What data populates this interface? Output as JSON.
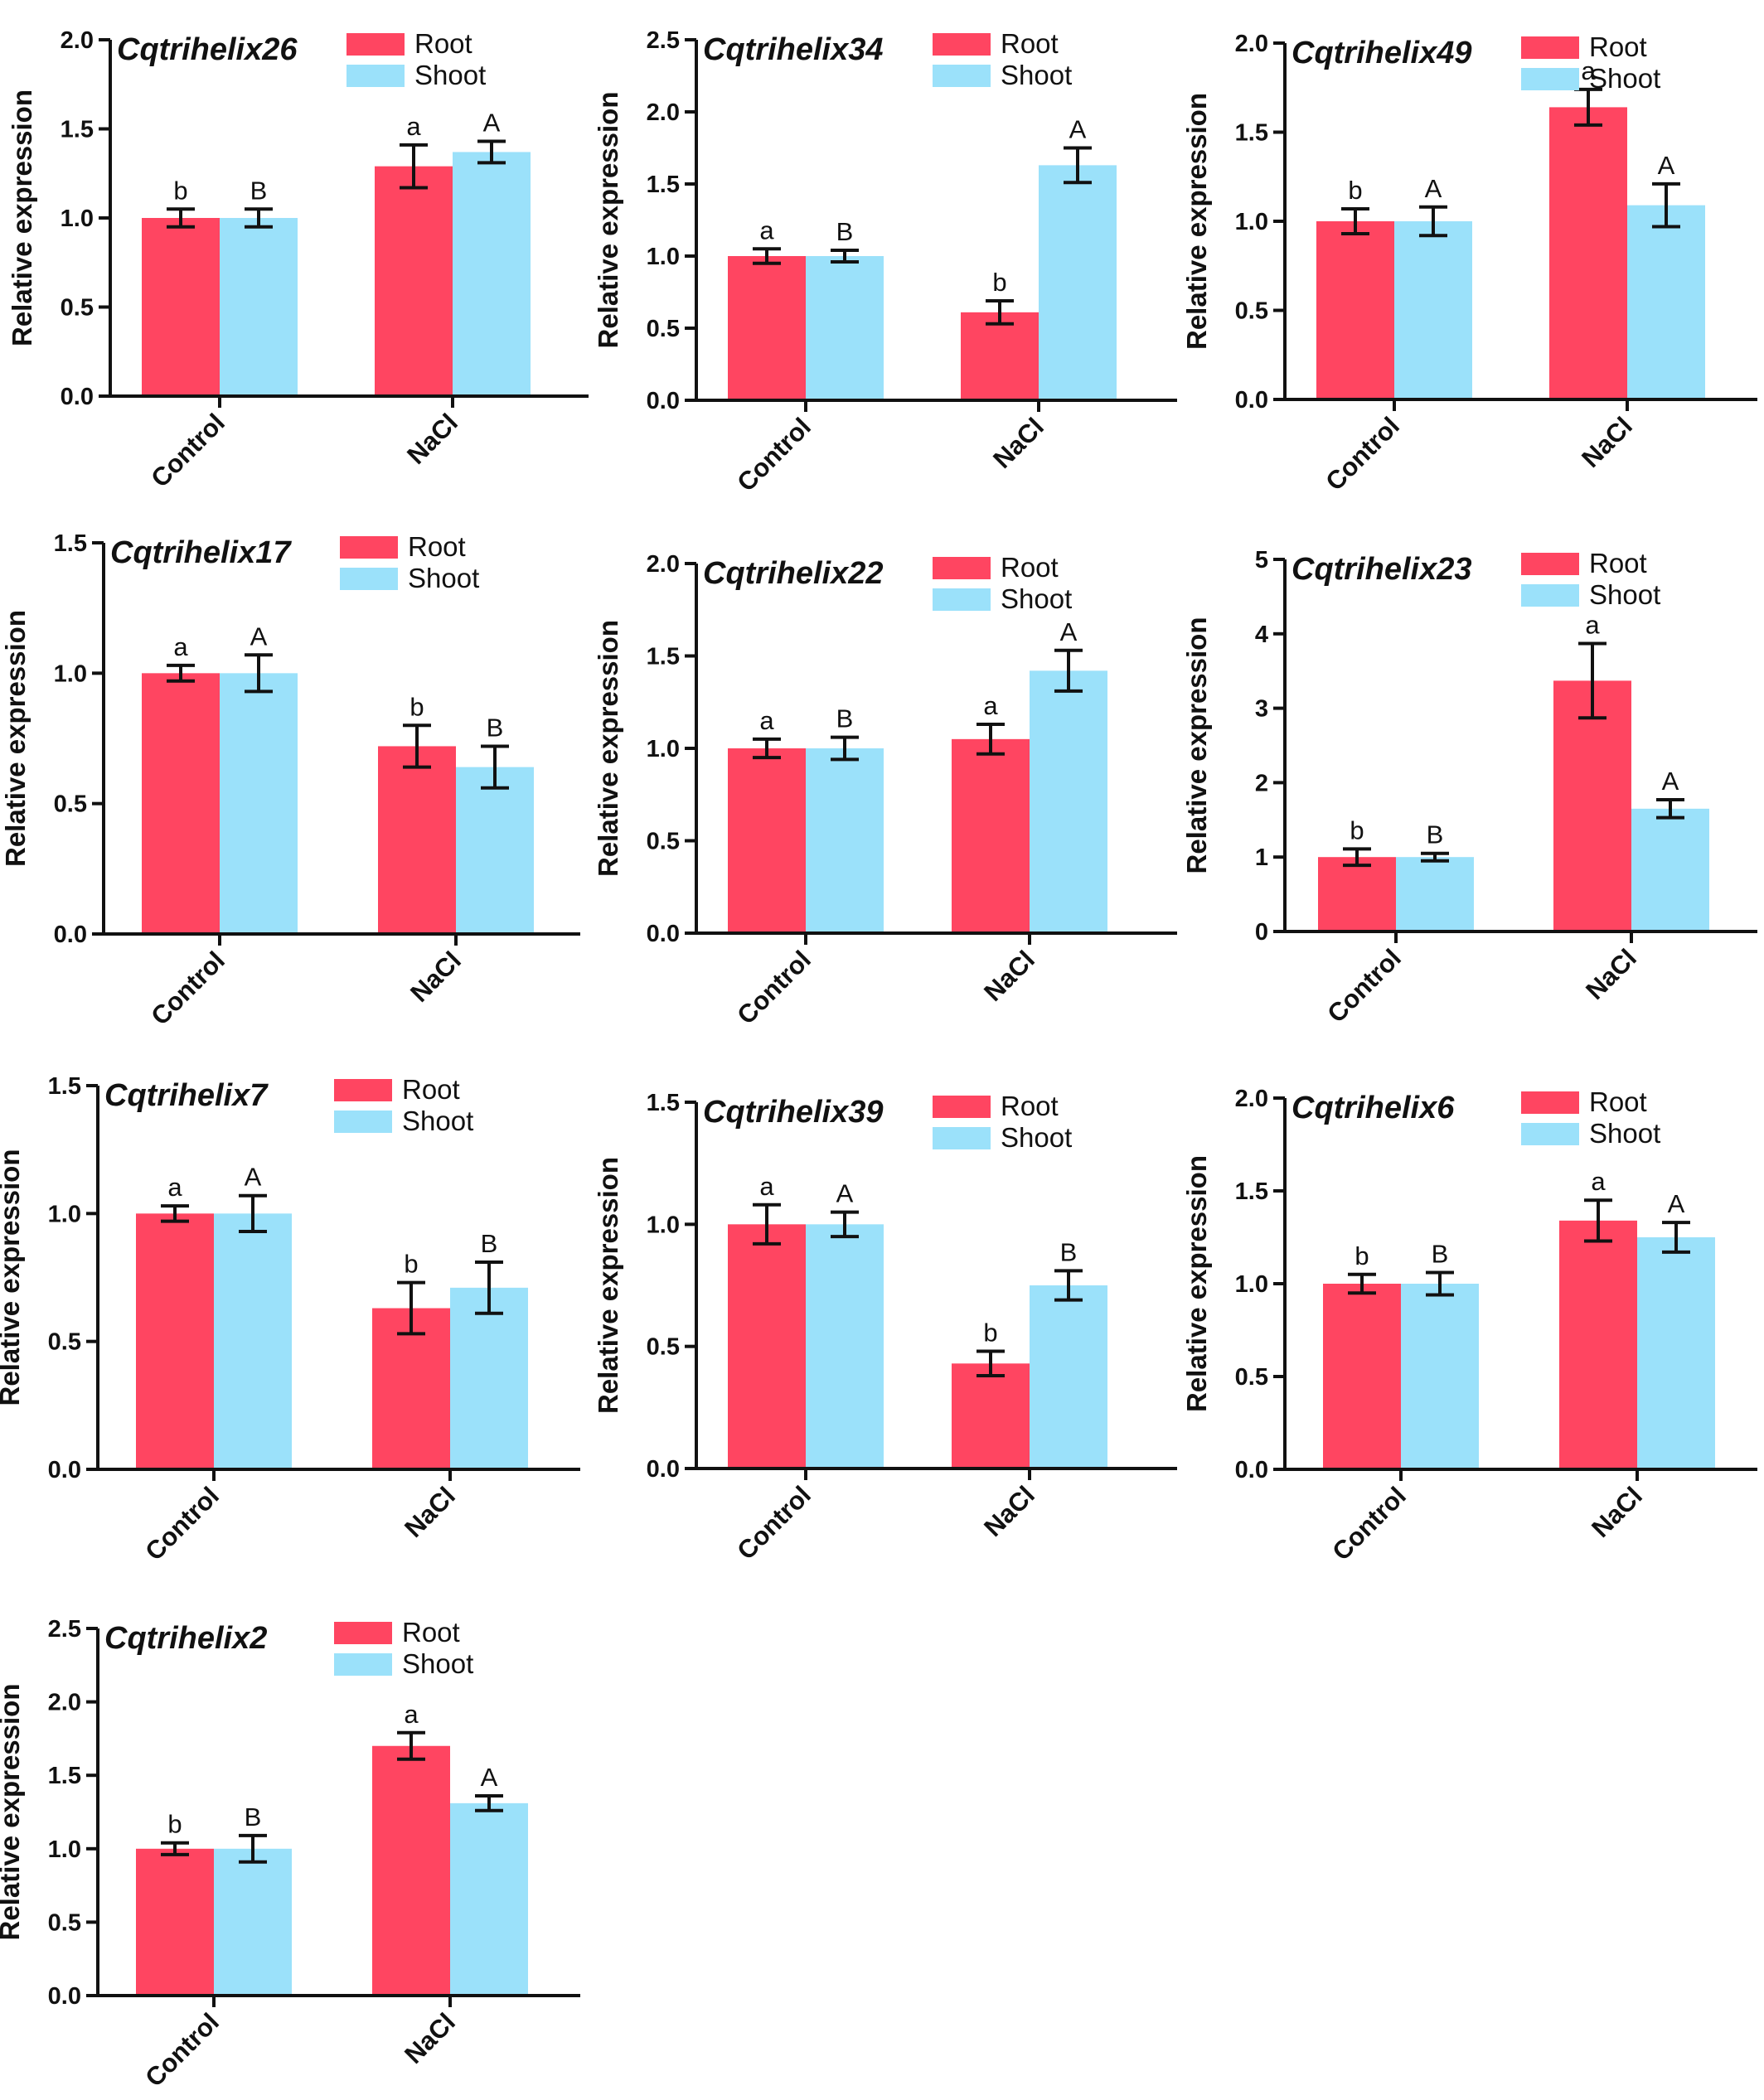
{
  "colors": {
    "root": "#FF4561",
    "shoot": "#9BE1FA",
    "axis": "#111111"
  },
  "chart_data": [
    {
      "type": "bar",
      "title": "Cqtrihelix26",
      "ylabel": "Relative expression",
      "categories": [
        "Control",
        "NaCl"
      ],
      "ylim": [
        0,
        2.0
      ],
      "yticks": [
        "0.0",
        "0.5",
        "1.0",
        "1.5",
        "2.0"
      ],
      "legend": "top-right",
      "series": [
        {
          "name": "Root",
          "values": [
            1.0,
            1.29
          ],
          "errors": [
            0.05,
            0.12
          ],
          "labels": [
            "b",
            "a"
          ]
        },
        {
          "name": "Shoot",
          "values": [
            1.0,
            1.37
          ],
          "errors": [
            0.05,
            0.06
          ],
          "labels": [
            "B",
            "A"
          ]
        }
      ]
    },
    {
      "type": "bar",
      "title": "Cqtrihelix34",
      "ylabel": "Relative expression",
      "categories": [
        "Control",
        "NaCl"
      ],
      "ylim": [
        0,
        2.5
      ],
      "yticks": [
        "0.0",
        "0.5",
        "1.0",
        "1.5",
        "2.0",
        "2.5"
      ],
      "legend": "top-right",
      "series": [
        {
          "name": "Root",
          "values": [
            1.0,
            0.61
          ],
          "errors": [
            0.05,
            0.08
          ],
          "labels": [
            "a",
            "b"
          ]
        },
        {
          "name": "Shoot",
          "values": [
            1.0,
            1.63
          ],
          "errors": [
            0.04,
            0.12
          ],
          "labels": [
            "B",
            "A"
          ]
        }
      ]
    },
    {
      "type": "bar",
      "title": "Cqtrihelix49",
      "ylabel": "Relative expression",
      "categories": [
        "Control",
        "NaCl"
      ],
      "ylim": [
        0,
        2.0
      ],
      "yticks": [
        "0.0",
        "0.5",
        "1.0",
        "1.5",
        "2.0"
      ],
      "legend": "top-right",
      "series": [
        {
          "name": "Root",
          "values": [
            1.0,
            1.64
          ],
          "errors": [
            0.07,
            0.1
          ],
          "labels": [
            "b",
            "a"
          ]
        },
        {
          "name": "Shoot",
          "values": [
            1.0,
            1.09
          ],
          "errors": [
            0.08,
            0.12
          ],
          "labels": [
            "A",
            "A"
          ]
        }
      ]
    },
    {
      "type": "bar",
      "title": "Cqtrihelix17",
      "ylabel": "Relative expression",
      "categories": [
        "Control",
        "NaCl"
      ],
      "ylim": [
        0,
        1.5
      ],
      "yticks": [
        "0.0",
        "0.5",
        "1.0",
        "1.5"
      ],
      "legend": "top-right",
      "series": [
        {
          "name": "Root",
          "values": [
            1.0,
            0.72
          ],
          "errors": [
            0.03,
            0.08
          ],
          "labels": [
            "a",
            "b"
          ]
        },
        {
          "name": "Shoot",
          "values": [
            1.0,
            0.64
          ],
          "errors": [
            0.07,
            0.08
          ],
          "labels": [
            "A",
            "B"
          ]
        }
      ]
    },
    {
      "type": "bar",
      "title": "Cqtrihelix22",
      "ylabel": "Relative expression",
      "categories": [
        "Control",
        "NaCl"
      ],
      "ylim": [
        0,
        2.0
      ],
      "yticks": [
        "0.0",
        "0.5",
        "1.0",
        "1.5",
        "2.0"
      ],
      "legend": "top-right",
      "series": [
        {
          "name": "Root",
          "values": [
            1.0,
            1.05
          ],
          "errors": [
            0.05,
            0.08
          ],
          "labels": [
            "a",
            "a"
          ]
        },
        {
          "name": "Shoot",
          "values": [
            1.0,
            1.42
          ],
          "errors": [
            0.06,
            0.11
          ],
          "labels": [
            "B",
            "A"
          ]
        }
      ]
    },
    {
      "type": "bar",
      "title": "Cqtrihelix23",
      "ylabel": "Relative expression",
      "categories": [
        "Control",
        "NaCl"
      ],
      "ylim": [
        0,
        5
      ],
      "yticks": [
        "0",
        "1",
        "2",
        "3",
        "4",
        "5"
      ],
      "legend": "top-right",
      "series": [
        {
          "name": "Root",
          "values": [
            1.0,
            3.37
          ],
          "errors": [
            0.11,
            0.5
          ],
          "labels": [
            "b",
            "a"
          ]
        },
        {
          "name": "Shoot",
          "values": [
            1.0,
            1.65
          ],
          "errors": [
            0.05,
            0.12
          ],
          "labels": [
            "B",
            "A"
          ]
        }
      ]
    },
    {
      "type": "bar",
      "title": "Cqtrihelix7",
      "ylabel": "Relative expression",
      "categories": [
        "Control",
        "NaCl"
      ],
      "ylim": [
        0,
        1.5
      ],
      "yticks": [
        "0.0",
        "0.5",
        "1.0",
        "1.5"
      ],
      "legend": "top-right",
      "series": [
        {
          "name": "Root",
          "values": [
            1.0,
            0.63
          ],
          "errors": [
            0.03,
            0.1
          ],
          "labels": [
            "a",
            "b"
          ]
        },
        {
          "name": "Shoot",
          "values": [
            1.0,
            0.71
          ],
          "errors": [
            0.07,
            0.1
          ],
          "labels": [
            "A",
            "B"
          ]
        }
      ]
    },
    {
      "type": "bar",
      "title": "Cqtrihelix39",
      "ylabel": "Relative expression",
      "categories": [
        "Control",
        "NaCl"
      ],
      "ylim": [
        0,
        1.5
      ],
      "yticks": [
        "0.0",
        "0.5",
        "1.0",
        "1.5"
      ],
      "legend": "top-right",
      "series": [
        {
          "name": "Root",
          "values": [
            1.0,
            0.43
          ],
          "errors": [
            0.08,
            0.05
          ],
          "labels": [
            "a",
            "b"
          ]
        },
        {
          "name": "Shoot",
          "values": [
            1.0,
            0.75
          ],
          "errors": [
            0.05,
            0.06
          ],
          "labels": [
            "A",
            "B"
          ]
        }
      ]
    },
    {
      "type": "bar",
      "title": "Cqtrihelix6",
      "ylabel": "Relative expression",
      "categories": [
        "Control",
        "NaCl"
      ],
      "ylim": [
        0,
        2.0
      ],
      "yticks": [
        "0.0",
        "0.5",
        "1.0",
        "1.5",
        "2.0"
      ],
      "legend": "top-right",
      "series": [
        {
          "name": "Root",
          "values": [
            1.0,
            1.34
          ],
          "errors": [
            0.05,
            0.11
          ],
          "labels": [
            "b",
            "a"
          ]
        },
        {
          "name": "Shoot",
          "values": [
            1.0,
            1.25
          ],
          "errors": [
            0.06,
            0.08
          ],
          "labels": [
            "B",
            "A"
          ]
        }
      ]
    },
    {
      "type": "bar",
      "title": "Cqtrihelix2",
      "ylabel": "Relative expression",
      "categories": [
        "Control",
        "NaCl"
      ],
      "ylim": [
        0,
        2.5
      ],
      "yticks": [
        "0.0",
        "0.5",
        "1.0",
        "1.5",
        "2.0",
        "2.5"
      ],
      "legend": "top-right",
      "series": [
        {
          "name": "Root",
          "values": [
            1.0,
            1.7
          ],
          "errors": [
            0.04,
            0.09
          ],
          "labels": [
            "b",
            "a"
          ]
        },
        {
          "name": "Shoot",
          "values": [
            1.0,
            1.31
          ],
          "errors": [
            0.09,
            0.05
          ],
          "labels": [
            "B",
            "A"
          ]
        }
      ]
    }
  ]
}
